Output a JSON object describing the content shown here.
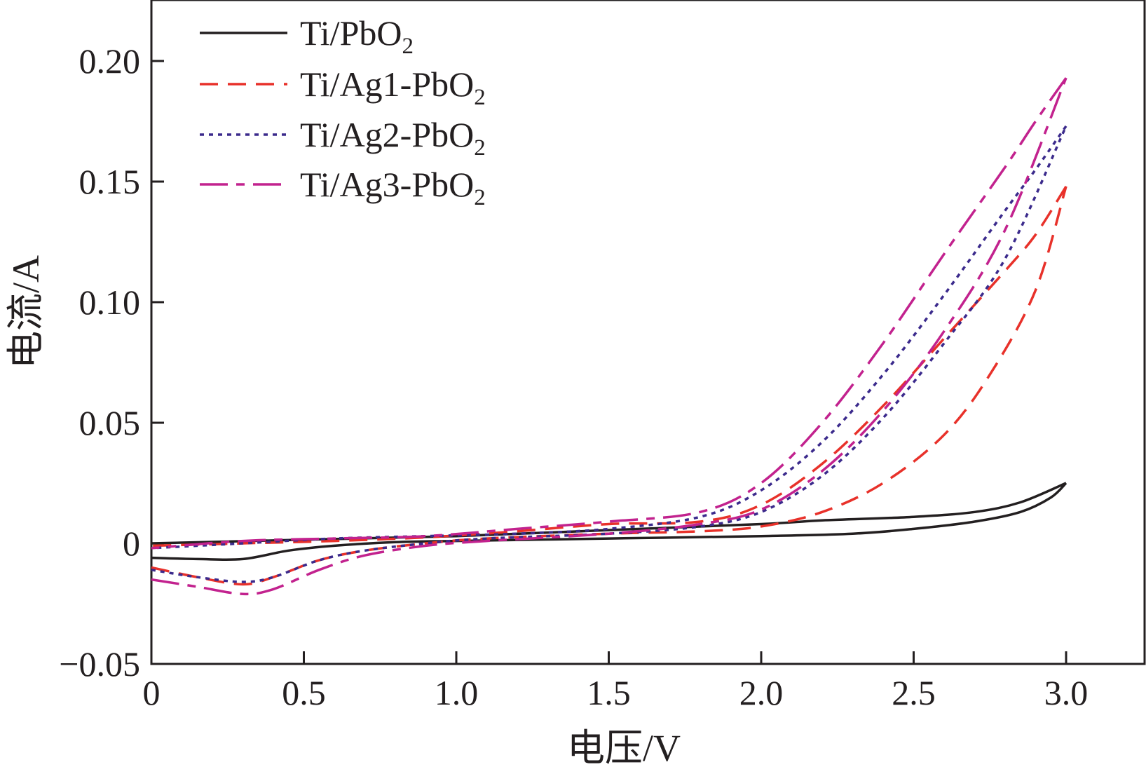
{
  "chart_data": {
    "type": "line",
    "title": "",
    "xlabel": "电压/V",
    "ylabel": "电流/A",
    "xlim": [
      0,
      3.25
    ],
    "ylim": [
      -0.05,
      0.225
    ],
    "grid": false,
    "legend_position": "top-left",
    "x_ticks": [
      0,
      0.5,
      1.0,
      1.5,
      2.0,
      2.5,
      3.0
    ],
    "x_tick_labels": [
      "0",
      "0.5",
      "1.0",
      "1.5",
      "2.0",
      "2.5",
      "3.0"
    ],
    "y_ticks": [
      -0.05,
      0,
      0.05,
      0.1,
      0.15,
      0.2
    ],
    "y_tick_labels": [
      "−0.05",
      "0",
      "0.05",
      "0.10",
      "0.15",
      "0.20"
    ],
    "series": [
      {
        "name": "Ti/PbO2",
        "label_main": "Ti/PbO",
        "label_sub": "2",
        "color": "#231f20",
        "dash": "solid",
        "forward": [
          [
            0,
            -0.006
          ],
          [
            0.15,
            -0.0065
          ],
          [
            0.3,
            -0.0065
          ],
          [
            0.45,
            -0.003
          ],
          [
            0.6,
            -0.001
          ],
          [
            0.8,
            0.0005
          ],
          [
            1.0,
            0.001
          ],
          [
            1.5,
            0.002
          ],
          [
            2.0,
            0.003
          ],
          [
            2.3,
            0.004
          ],
          [
            2.5,
            0.006
          ],
          [
            2.7,
            0.009
          ],
          [
            2.85,
            0.013
          ],
          [
            2.95,
            0.019
          ],
          [
            3.0,
            0.025
          ]
        ],
        "reverse": [
          [
            3.0,
            0.025
          ],
          [
            2.85,
            0.017
          ],
          [
            2.7,
            0.013
          ],
          [
            2.5,
            0.011
          ],
          [
            2.2,
            0.0095
          ],
          [
            2.0,
            0.008
          ],
          [
            1.5,
            0.0055
          ],
          [
            1.0,
            0.003
          ],
          [
            0.5,
            0.0015
          ],
          [
            0,
            0
          ]
        ]
      },
      {
        "name": "Ti/Ag1-PbO2",
        "label_main": "Ti/Ag1-PbO",
        "label_sub": "2",
        "color": "#e8312a",
        "dash": "long-dash",
        "forward": [
          [
            0,
            -0.01
          ],
          [
            0.15,
            -0.014
          ],
          [
            0.3,
            -0.017
          ],
          [
            0.4,
            -0.014
          ],
          [
            0.55,
            -0.007
          ],
          [
            0.7,
            -0.003
          ],
          [
            0.9,
            0.0
          ],
          [
            1.1,
            0.002
          ],
          [
            1.5,
            0.004
          ],
          [
            1.8,
            0.005
          ],
          [
            2.0,
            0.007
          ],
          [
            2.2,
            0.013
          ],
          [
            2.4,
            0.025
          ],
          [
            2.6,
            0.045
          ],
          [
            2.75,
            0.07
          ],
          [
            2.9,
            0.105
          ],
          [
            3.0,
            0.148
          ]
        ],
        "reverse": [
          [
            3.0,
            0.148
          ],
          [
            2.9,
            0.128
          ],
          [
            2.8,
            0.113
          ],
          [
            2.6,
            0.085
          ],
          [
            2.4,
            0.057
          ],
          [
            2.2,
            0.033
          ],
          [
            2.0,
            0.016
          ],
          [
            1.8,
            0.009
          ],
          [
            1.5,
            0.008
          ],
          [
            1.2,
            0.005
          ],
          [
            0.9,
            0.0025
          ],
          [
            0.6,
            0.001
          ],
          [
            0.3,
            0.0
          ],
          [
            0,
            -0.001
          ]
        ]
      },
      {
        "name": "Ti/Ag2-PbO2",
        "label_main": "Ti/Ag2-PbO",
        "label_sub": "2",
        "color": "#3b2a8c",
        "dash": "dotted",
        "forward": [
          [
            0,
            -0.011
          ],
          [
            0.15,
            -0.014
          ],
          [
            0.3,
            -0.016
          ],
          [
            0.4,
            -0.014
          ],
          [
            0.55,
            -0.007
          ],
          [
            0.7,
            -0.003
          ],
          [
            0.9,
            0.0
          ],
          [
            1.1,
            0.002
          ],
          [
            1.5,
            0.004
          ],
          [
            1.8,
            0.007
          ],
          [
            2.0,
            0.013
          ],
          [
            2.2,
            0.028
          ],
          [
            2.4,
            0.052
          ],
          [
            2.6,
            0.083
          ],
          [
            2.8,
            0.118
          ],
          [
            3.0,
            0.173
          ]
        ],
        "reverse": [
          [
            3.0,
            0.173
          ],
          [
            2.9,
            0.155
          ],
          [
            2.8,
            0.138
          ],
          [
            2.6,
            0.103
          ],
          [
            2.4,
            0.07
          ],
          [
            2.2,
            0.042
          ],
          [
            2.0,
            0.022
          ],
          [
            1.8,
            0.011
          ],
          [
            1.5,
            0.006
          ],
          [
            1.2,
            0.004
          ],
          [
            0.9,
            0.003
          ],
          [
            0.6,
            0.002
          ],
          [
            0.3,
            0.0
          ],
          [
            0,
            -0.002
          ]
        ]
      },
      {
        "name": "Ti/Ag3-PbO2",
        "label_main": "Ti/Ag3-PbO",
        "label_sub": "2",
        "color": "#c2228e",
        "dash": "dash-dot",
        "forward": [
          [
            0,
            -0.015
          ],
          [
            0.15,
            -0.018
          ],
          [
            0.3,
            -0.021
          ],
          [
            0.4,
            -0.019
          ],
          [
            0.55,
            -0.011
          ],
          [
            0.7,
            -0.005
          ],
          [
            0.9,
            -0.001
          ],
          [
            1.1,
            0.001
          ],
          [
            1.5,
            0.004
          ],
          [
            1.8,
            0.008
          ],
          [
            2.0,
            0.014
          ],
          [
            2.2,
            0.03
          ],
          [
            2.4,
            0.055
          ],
          [
            2.6,
            0.088
          ],
          [
            2.8,
            0.13
          ],
          [
            3.0,
            0.193
          ]
        ],
        "reverse": [
          [
            3.0,
            0.193
          ],
          [
            2.9,
            0.175
          ],
          [
            2.8,
            0.156
          ],
          [
            2.6,
            0.12
          ],
          [
            2.4,
            0.083
          ],
          [
            2.2,
            0.05
          ],
          [
            2.0,
            0.025
          ],
          [
            1.8,
            0.013
          ],
          [
            1.5,
            0.009
          ],
          [
            1.2,
            0.006
          ],
          [
            0.9,
            0.003
          ],
          [
            0.6,
            0.002
          ],
          [
            0.3,
            0.001
          ],
          [
            0,
            -0.002
          ]
        ]
      }
    ]
  }
}
